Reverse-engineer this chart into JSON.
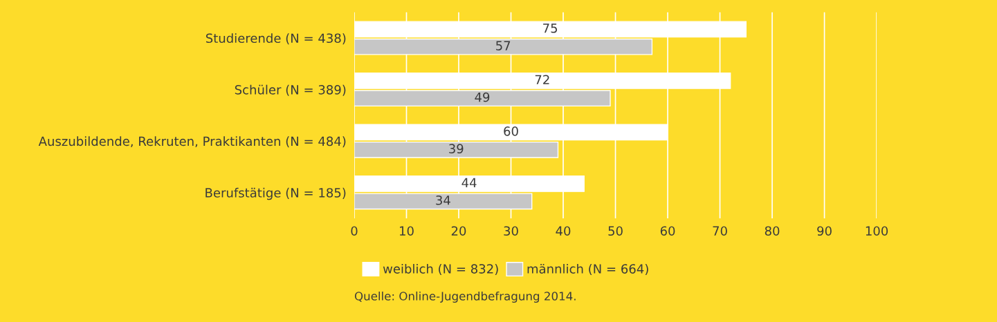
{
  "chart_data": {
    "type": "bar",
    "orientation": "horizontal",
    "categories": [
      "Studierende (N = 438)",
      "Schüler (N = 389)",
      "Auszubildende, Rekruten, Praktikanten (N = 484)",
      "Berufstätige (N = 185)"
    ],
    "series": [
      {
        "name": "weiblich (N = 832)",
        "color": "#ffffff",
        "values": [
          75,
          72,
          60,
          44
        ]
      },
      {
        "name": "männlich (N = 664)",
        "color": "#c6c6c6",
        "values": [
          57,
          49,
          39,
          34
        ]
      }
    ],
    "xlim": [
      0,
      100
    ],
    "xticks": [
      0,
      10,
      20,
      30,
      40,
      50,
      60,
      70,
      80,
      90,
      100
    ],
    "grid": "x",
    "legend": "bottom",
    "data_labels": true,
    "annotations": [
      "Quelle: Online-Jugendbefragung 2014."
    ]
  }
}
